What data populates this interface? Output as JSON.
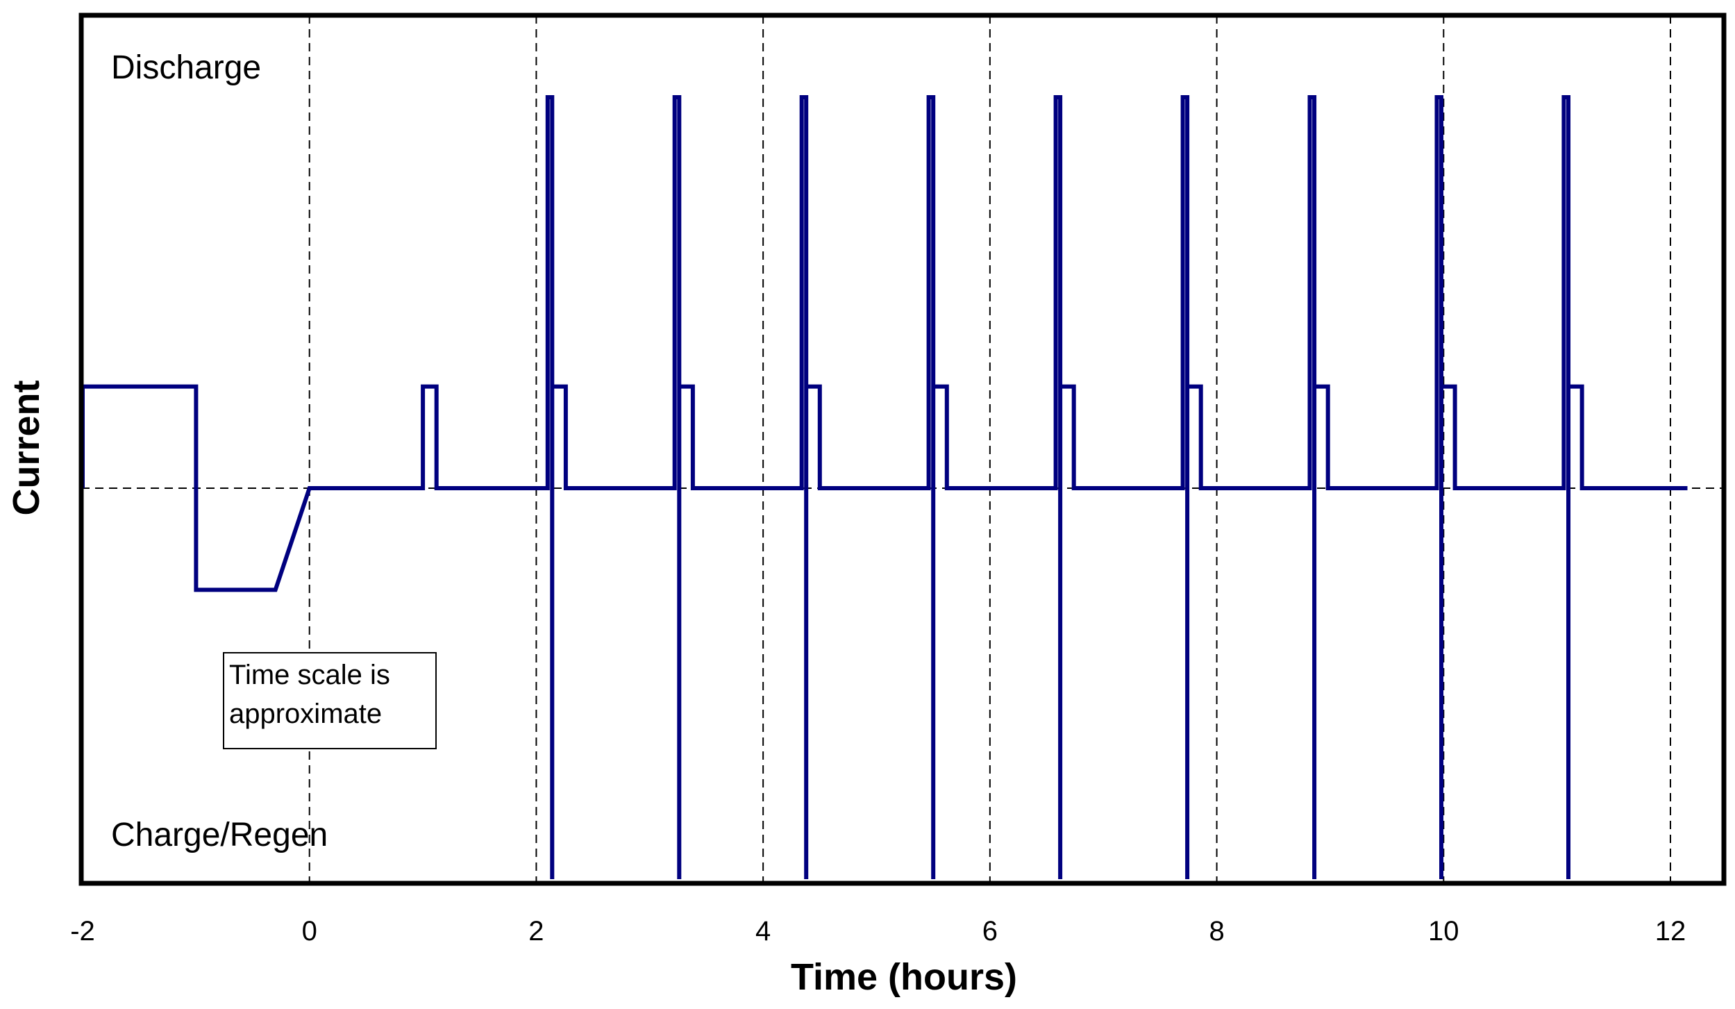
{
  "chart_data": {
    "type": "line",
    "title": "",
    "xlabel": "Time (hours)",
    "ylabel": "Current",
    "xlim": [
      -2,
      12.5
    ],
    "ylim": [
      -1,
      1
    ],
    "x_ticks": [
      -2,
      0,
      2,
      4,
      6,
      8,
      10,
      12
    ],
    "x_tick_labels": [
      "-2",
      "0",
      "2",
      "4",
      "6",
      "8",
      "10",
      "12"
    ],
    "grid": {
      "vertical_dashed_at": [
        0,
        2,
        4,
        6,
        8,
        10,
        12
      ],
      "horizontal_dashed_at": [
        0
      ]
    },
    "region_labels": {
      "top": "Discharge",
      "bottom": "Charge/Regen"
    },
    "annotation": [
      "Time scale is",
      "approximate"
    ],
    "series_color": "#00007f",
    "series": [
      {
        "name": "",
        "x": [
          -2,
          -2,
          -1,
          -1,
          -0.3,
          0,
          1,
          1,
          1.12,
          1.12,
          2.1,
          2.1,
          2.14,
          2.14,
          2.14,
          2.26,
          2.26,
          3.22,
          3.22,
          3.26,
          3.26,
          3.26,
          3.38,
          3.38,
          4.34,
          4.34,
          4.38,
          4.38,
          4.38,
          4.5,
          4.5,
          5.46,
          5.46,
          5.5,
          5.5,
          5.5,
          5.62,
          5.62,
          6.58,
          6.58,
          6.62,
          6.62,
          6.62,
          6.74,
          6.74,
          7.7,
          7.7,
          7.74,
          7.74,
          7.74,
          7.86,
          7.86,
          8.82,
          8.82,
          8.86,
          8.86,
          8.86,
          8.98,
          8.98,
          9.94,
          9.94,
          9.98,
          9.98,
          9.98,
          10.1,
          10.1,
          11.06,
          11.06,
          11.1,
          11.1,
          11.1,
          11.22,
          11.22,
          12.15
        ],
        "y": [
          0,
          0.26,
          0.26,
          -0.26,
          -0.26,
          0,
          0,
          0.26,
          0.26,
          0,
          0,
          1,
          1,
          -1,
          0.26,
          0.26,
          0,
          0,
          1,
          1,
          -1,
          0.26,
          0.26,
          0,
          0,
          1,
          1,
          -1,
          0.26,
          0.26,
          0,
          0,
          1,
          1,
          -1,
          0.26,
          0.26,
          0,
          0,
          1,
          1,
          -1,
          0.26,
          0.26,
          0,
          0,
          1,
          1,
          -1,
          0.26,
          0.26,
          0,
          0,
          1,
          1,
          -1,
          0.26,
          0.26,
          0,
          0,
          1,
          1,
          -1,
          0.26,
          0.26,
          0,
          0,
          1,
          1,
          -1,
          0.26,
          0.26,
          0,
          0
        ]
      }
    ]
  }
}
